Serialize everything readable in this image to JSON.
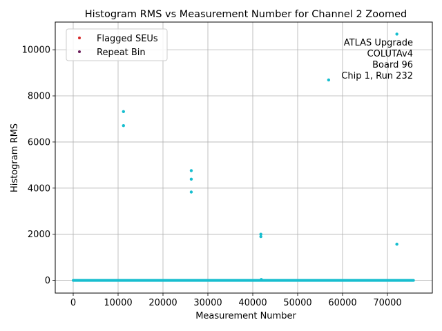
{
  "chart_data": {
    "type": "scatter",
    "title": "Histogram RMS vs Measurement Number for Channel 2 Zoomed",
    "xlabel": "Measurement Number",
    "ylabel": "Histogram RMS",
    "xlim": [
      -4000,
      80000
    ],
    "ylim": [
      -550,
      11200
    ],
    "xticks": [
      0,
      10000,
      20000,
      30000,
      40000,
      50000,
      60000,
      70000
    ],
    "yticks": [
      0,
      2000,
      4000,
      6000,
      8000,
      10000
    ],
    "grid": true,
    "legend": {
      "placement": "upper-left",
      "entries": [
        {
          "label": "Flagged SEUs",
          "color": "#d62728"
        },
        {
          "label": "Repeat Bin",
          "color": "#6a1b5a"
        }
      ]
    },
    "annotation": [
      "ATLAS Upgrade",
      "COLUTAv4",
      "Board 96",
      "Chip 1, Run 232"
    ],
    "series": [
      {
        "color": "#17becf",
        "baseline": {
          "x_start": 0,
          "x_end": 75800,
          "y": 0
        },
        "points": [
          {
            "x": 11200,
            "y": 7320
          },
          {
            "x": 11200,
            "y": 6710
          },
          {
            "x": 26300,
            "y": 4760
          },
          {
            "x": 26300,
            "y": 4390
          },
          {
            "x": 26300,
            "y": 3830
          },
          {
            "x": 41800,
            "y": 2000
          },
          {
            "x": 41800,
            "y": 1900
          },
          {
            "x": 41900,
            "y": 40
          },
          {
            "x": 56900,
            "y": 8690
          },
          {
            "x": 72100,
            "y": 10680
          },
          {
            "x": 72100,
            "y": 1570
          }
        ]
      }
    ]
  }
}
